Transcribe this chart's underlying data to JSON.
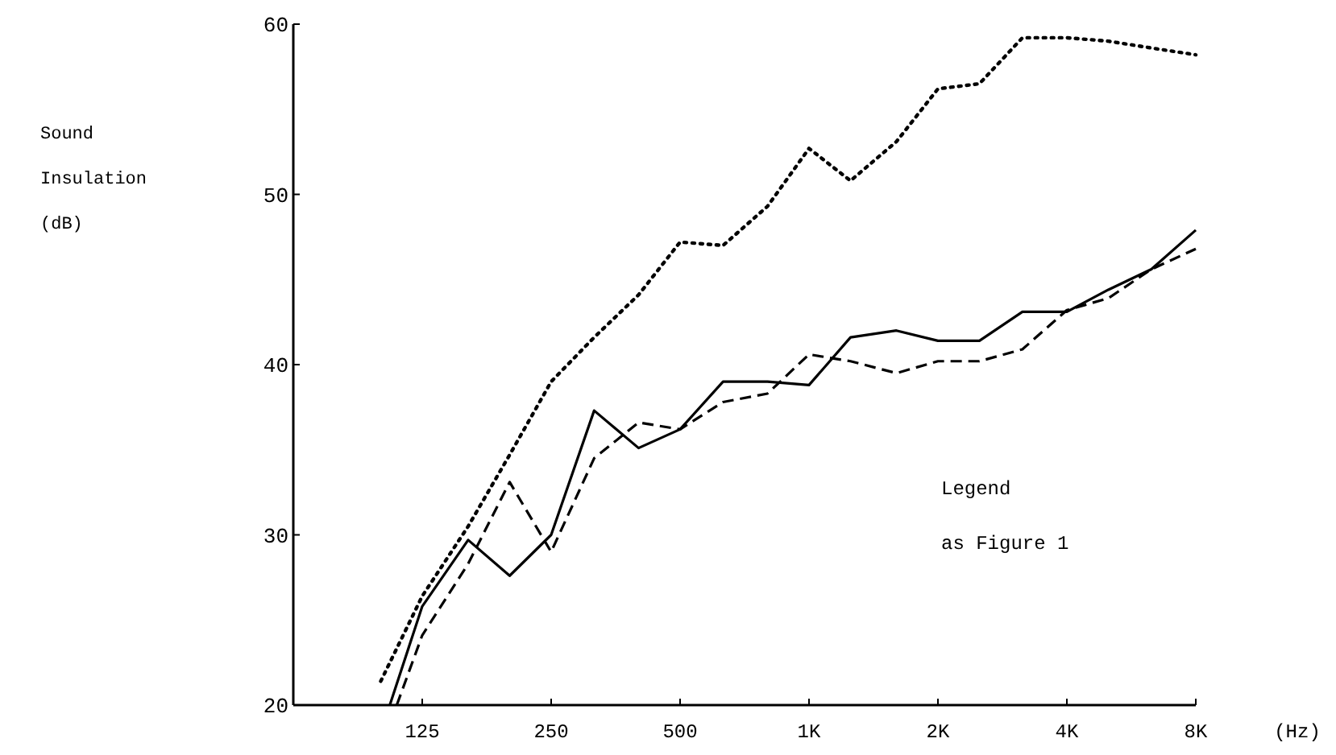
{
  "chart_data": {
    "type": "line",
    "xlabel": "(Hz)",
    "ylabel": "Sound Insulation (dB)",
    "log": "x",
    "xlim": [
      62.5,
      8000
    ],
    "ylim": [
      20,
      60
    ],
    "xticks": [
      125,
      250,
      500,
      {
        "value": 1000,
        "label": "1K"
      },
      {
        "value": 2000,
        "label": "2K"
      },
      {
        "value": 4000,
        "label": "4K"
      },
      {
        "value": 8000,
        "label": "8K"
      }
    ],
    "yticks": [
      20,
      30,
      40,
      50,
      60
    ],
    "annotations": [
      "Legend",
      "as Figure 1"
    ],
    "series": [
      {
        "color": "#000000",
        "line_style": "dotted",
        "x": [
          100,
          125,
          160,
          200,
          250,
          315,
          400,
          500,
          630,
          800,
          1000,
          1250,
          1600,
          2000,
          2500,
          3150,
          4000,
          5000,
          6300,
          8000
        ],
        "values": [
          21.4,
          26.4,
          30.5,
          34.7,
          39.0,
          41.6,
          44.1,
          47.2,
          47.0,
          49.3,
          52.7,
          50.8,
          53.1,
          56.2,
          56.5,
          59.2,
          59.2,
          59.0,
          58.6,
          58.2
        ]
      },
      {
        "color": "#000000",
        "line_style": "solid",
        "x": [
          105,
          125,
          160,
          200,
          250,
          315,
          400,
          500,
          630,
          800,
          1000,
          1250,
          1600,
          2000,
          2500,
          3150,
          4000,
          5000,
          6300,
          8000
        ],
        "values": [
          20,
          25.8,
          29.7,
          27.6,
          30.0,
          37.3,
          35.1,
          36.2,
          39.0,
          39.0,
          38.8,
          41.6,
          42.0,
          41.4,
          41.4,
          43.1,
          43.1,
          44.4,
          45.6,
          47.9
        ]
      },
      {
        "color": "#000000",
        "line_style": "dashed",
        "x": [
          109,
          125,
          160,
          200,
          250,
          315,
          400,
          500,
          630,
          800,
          1000,
          1250,
          1600,
          2000,
          2500,
          3150,
          4000,
          5000,
          6300,
          8000
        ],
        "values": [
          20,
          24.1,
          28.3,
          33.1,
          29.0,
          34.5,
          36.6,
          36.2,
          37.8,
          38.3,
          40.6,
          40.2,
          39.5,
          40.2,
          40.2,
          40.9,
          43.2,
          43.9,
          45.6,
          46.8
        ]
      }
    ]
  }
}
